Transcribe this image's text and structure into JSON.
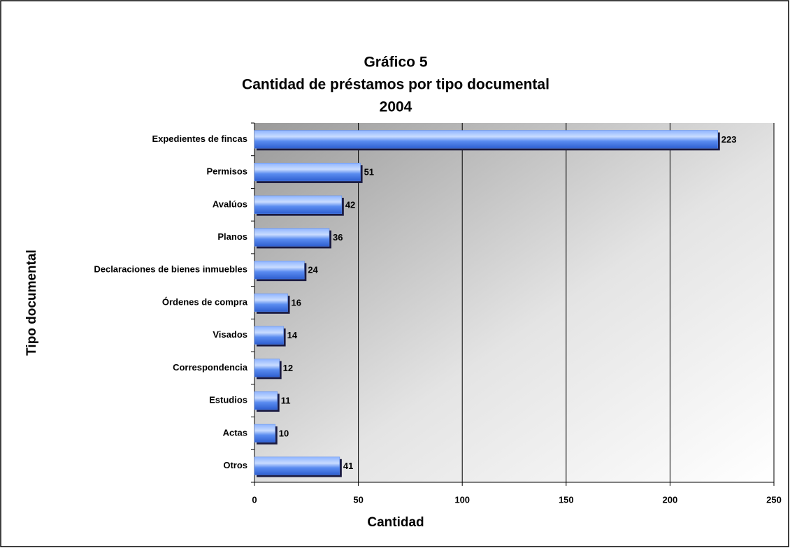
{
  "chart_data": {
    "type": "bar",
    "orientation": "horizontal",
    "title_lines": [
      "Gráfico 5",
      "Cantidad de préstamos por tipo documental",
      "2004"
    ],
    "x_label": "Cantidad",
    "y_label": "Tipo documental",
    "categories": [
      "Expedientes de fincas",
      "Permisos",
      "Avalúos",
      "Planos",
      "Declaraciones de bienes inmuebles",
      "Órdenes de compra",
      "Visados",
      "Correspondencia",
      "Estudios",
      "Actas",
      "Otros"
    ],
    "values": [
      223,
      51,
      42,
      36,
      24,
      16,
      14,
      12,
      11,
      10,
      41
    ],
    "color": "#5a8cf0",
    "xlim": [
      0,
      250
    ],
    "xticks": [
      0,
      50,
      100,
      150,
      200,
      250
    ],
    "grid": true
  }
}
